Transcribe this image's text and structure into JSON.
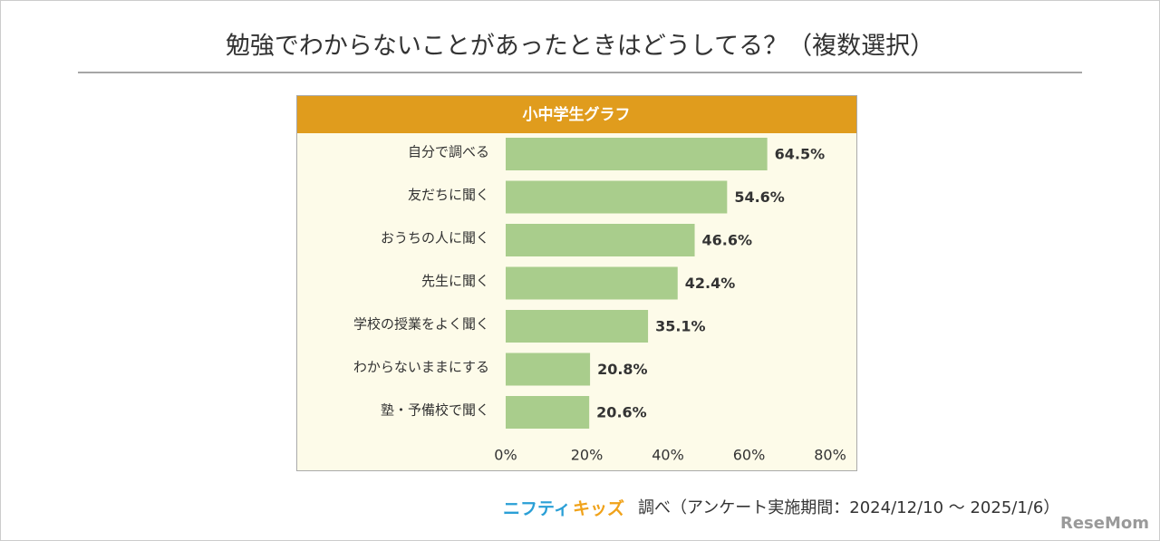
{
  "chart_data": {
    "type": "bar",
    "orientation": "horizontal",
    "title": "勉強でわからないことがあったときはどうしてる？（複数選択）",
    "panel_title": "小中学生グラフ",
    "categories": [
      "自分で調べる",
      "友だちに聞く",
      "おうちの人に聞く",
      "先生に聞く",
      "学校の授業をよく聞く",
      "わからないままにする",
      "塾・予備校で聞く"
    ],
    "values": [
      64.5,
      54.6,
      46.6,
      42.4,
      35.1,
      20.8,
      20.6
    ],
    "value_labels": [
      "64.5%",
      "54.6%",
      "46.6%",
      "42.4%",
      "35.1%",
      "20.8%",
      "20.6%"
    ],
    "color": "#a9cd8c",
    "xlim": [
      0,
      80
    ],
    "xticks": [
      {
        "value": 0,
        "label": "0%"
      },
      {
        "value": 20,
        "label": "20%"
      },
      {
        "value": 40,
        "label": "40%"
      },
      {
        "value": 60,
        "label": "60%"
      },
      {
        "value": 80,
        "label": "80%"
      }
    ],
    "grid": false,
    "source_brand_1": "ニフティ",
    "source_brand_2": "キッズ",
    "source_text": "調べ（アンケート実施期間：2024/12/10 ～ 2025/1/6）",
    "watermark": "ReseMom"
  }
}
